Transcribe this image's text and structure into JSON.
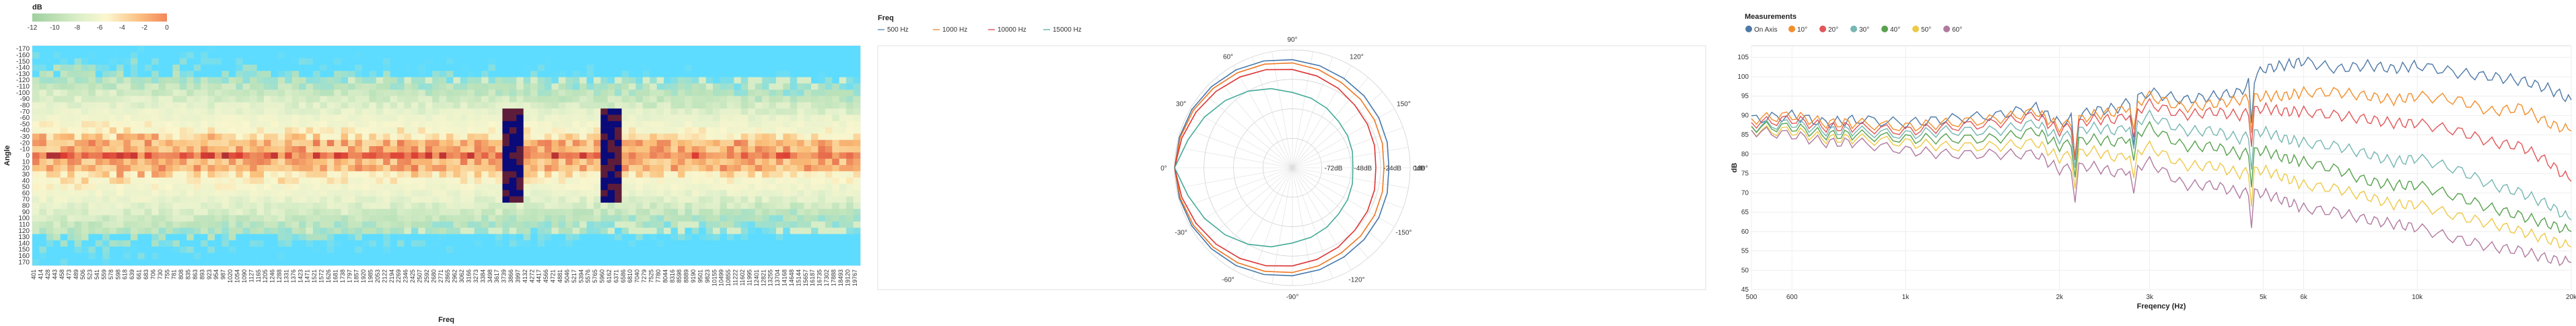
{
  "heatmap": {
    "legend_title": "dB",
    "legend_ticks": [
      "-12",
      "-10",
      "-8",
      "-6",
      "-4",
      "-2",
      "0"
    ],
    "xlabel": "Freq",
    "ylabel": "Angle",
    "y_ticks": [
      "-170",
      "-160",
      "-150",
      "-140",
      "-130",
      "-120",
      "-110",
      "-100",
      "-90",
      "-80",
      "-70",
      "-60",
      "-50",
      "-40",
      "-30",
      "-20",
      "-10",
      "0",
      "10",
      "20",
      "30",
      "40",
      "50",
      "60",
      "70",
      "80",
      "90",
      "100",
      "110",
      "120",
      "130",
      "140",
      "150",
      "160",
      "170"
    ],
    "x_ticks": [
      "401",
      "414",
      "428",
      "443",
      "458",
      "473",
      "489",
      "506",
      "523",
      "541",
      "559",
      "578",
      "598",
      "618",
      "639",
      "661",
      "683",
      "706",
      "730",
      "755",
      "781",
      "808",
      "835",
      "863",
      "893",
      "923",
      "954",
      "987",
      "1020",
      "1054",
      "1090",
      "1127",
      "1165",
      "1205",
      "1246",
      "1288",
      "1331",
      "1376",
      "1423",
      "1471",
      "1521",
      "1572",
      "1626",
      "1681",
      "1738",
      "1797",
      "1857",
      "1920",
      "1985",
      "2053",
      "2122",
      "2194",
      "2269",
      "2346",
      "2425",
      "2507",
      "2592",
      "2680",
      "2771",
      "2865",
      "2962",
      "3062",
      "3166",
      "3273",
      "3384",
      "3498",
      "3617",
      "3739",
      "3866",
      "3997",
      "4132",
      "4272",
      "4417",
      "4566",
      "4721",
      "4881",
      "5046",
      "5217",
      "5394",
      "5576",
      "5765",
      "5960",
      "6162",
      "6371",
      "6586",
      "6810",
      "7040",
      "7279",
      "7525",
      "7780",
      "8044",
      "8316",
      "8598",
      "8889",
      "9190",
      "9501",
      "9823",
      "10155",
      "10499",
      "10855",
      "11222",
      "11602",
      "11995",
      "12401",
      "12821",
      "13255",
      "13704",
      "14168",
      "14648",
      "15144",
      "15657",
      "16187",
      "16735",
      "17302",
      "17888",
      "18493",
      "19120",
      "19767"
    ]
  },
  "polar": {
    "legend_title": "Freq",
    "legend": [
      {
        "label": "500 Hz",
        "color": "#4477aa"
      },
      {
        "label": "1000 Hz",
        "color": "#ee7722"
      },
      {
        "label": "10000 Hz",
        "color": "#dd3333"
      },
      {
        "label": "15000 Hz",
        "color": "#44aa99"
      }
    ],
    "angle_labels": [
      {
        "text": "90°",
        "deg": 90
      },
      {
        "text": "120°",
        "deg": 60
      },
      {
        "text": "150°",
        "deg": 30
      },
      {
        "text": "180°",
        "deg": 0
      },
      {
        "text": "-150°",
        "deg": -30
      },
      {
        "text": "-120°",
        "deg": -60
      },
      {
        "text": "-90°",
        "deg": -90
      },
      {
        "text": "-60°",
        "deg": -120
      },
      {
        "text": "-30°",
        "deg": -150
      },
      {
        "text": "0°",
        "deg": 180
      },
      {
        "text": "30°",
        "deg": 150
      },
      {
        "text": "60°",
        "deg": 120
      }
    ],
    "ring_labels": [
      "-72dB",
      "-48dB",
      "-24dB",
      "0dB"
    ]
  },
  "spl": {
    "legend_title": "Measurements",
    "ylabel": "dB",
    "xlabel": "Freqency (Hz)",
    "y_ticks": [
      "45",
      "50",
      "55",
      "60",
      "65",
      "70",
      "75",
      "80",
      "85",
      "90",
      "95",
      "100",
      "105"
    ],
    "x_ticks": [
      "500",
      "600",
      "1k",
      "2k",
      "3k",
      "5k",
      "6k",
      "10k",
      "20k"
    ]
  },
  "chart_data": [
    {
      "type": "heatmap",
      "title": "",
      "xlabel": "Freq",
      "ylabel": "Angle",
      "x_range": [
        401,
        19767
      ],
      "y_range": [
        -170,
        170
      ],
      "color_scale": {
        "min": -12,
        "max": 0,
        "unit": "dB"
      }
    },
    {
      "type": "line",
      "subtype": "polar",
      "title": "",
      "radial_range_db": [
        -72,
        0
      ],
      "series": [
        {
          "name": "500 Hz",
          "color": "#4477aa",
          "values": [
            0,
            -0.5,
            -1,
            -2,
            -3,
            -4.5,
            -6,
            -7.5,
            -9,
            -10,
            -11,
            -12,
            -13
          ]
        },
        {
          "name": "1000 Hz",
          "color": "#ee7722",
          "values": [
            0,
            -1,
            -2,
            -3.5,
            -5,
            -6.5,
            -8,
            -10,
            -12,
            -13,
            -14,
            -15,
            -16
          ]
        },
        {
          "name": "10000 Hz",
          "color": "#dd3333",
          "values": [
            0,
            -2,
            -4,
            -6,
            -8,
            -10,
            -12,
            -14,
            -16,
            -18,
            -19,
            -20,
            -21
          ]
        },
        {
          "name": "15000 Hz",
          "color": "#44aa99",
          "values": [
            0,
            -6,
            -10,
            -14,
            -18,
            -22,
            -26,
            -28,
            -30,
            -32,
            -33,
            -34,
            -35
          ]
        }
      ],
      "angles_deg": [
        0,
        15,
        30,
        45,
        60,
        75,
        90,
        105,
        120,
        135,
        150,
        165,
        180
      ]
    },
    {
      "type": "line",
      "title": "",
      "xlabel": "Freqency (Hz)",
      "ylabel": "dB",
      "x_scale": "log",
      "xlim": [
        500,
        20000
      ],
      "ylim": [
        45,
        108
      ],
      "x": [
        500,
        600,
        700,
        800,
        1000,
        1200,
        1500,
        1800,
        2000,
        2300,
        2600,
        3000,
        3500,
        4000,
        4500,
        5000,
        5500,
        6000,
        7000,
        8000,
        9000,
        10000,
        12000,
        14000,
        16000,
        18000,
        20000
      ],
      "series": [
        {
          "name": "On Axis",
          "color": "#4e79a7",
          "values": [
            89,
            90,
            88,
            89,
            88,
            89,
            90,
            92,
            88,
            91,
            92,
            96,
            94,
            95,
            96,
            102,
            103,
            104,
            102,
            103,
            102,
            103,
            101,
            100,
            99,
            97,
            94
          ]
        },
        {
          "name": "10°",
          "color": "#f28e2b",
          "values": [
            89,
            90,
            88,
            88,
            87,
            88,
            89,
            91,
            87,
            90,
            91,
            95,
            92,
            93,
            94,
            95,
            95,
            96,
            96,
            95,
            94,
            95,
            94,
            91,
            92,
            88,
            86
          ]
        },
        {
          "name": "20°",
          "color": "#e15759",
          "values": [
            88,
            89,
            87,
            87,
            86,
            87,
            88,
            90,
            86,
            89,
            89,
            93,
            90,
            91,
            90,
            92,
            91,
            91,
            90,
            89,
            88,
            88,
            86,
            83,
            82,
            78,
            73
          ]
        },
        {
          "name": "30°",
          "color": "#76b7b2",
          "values": [
            87,
            88,
            86,
            86,
            85,
            86,
            86,
            88,
            84,
            87,
            86,
            90,
            86,
            86,
            84,
            86,
            84,
            83,
            82,
            80,
            78,
            79,
            76,
            72,
            70,
            67,
            63
          ]
        },
        {
          "name": "40°",
          "color": "#59a14f",
          "values": [
            87,
            87,
            85,
            85,
            84,
            84,
            84,
            86,
            82,
            84,
            83,
            87,
            82,
            82,
            80,
            81,
            79,
            78,
            76,
            73,
            72,
            72,
            69,
            66,
            64,
            62,
            60
          ]
        },
        {
          "name": "50°",
          "color": "#edc948",
          "values": [
            86,
            86,
            84,
            84,
            83,
            82,
            82,
            83,
            79,
            81,
            79,
            82,
            77,
            77,
            75,
            76,
            74,
            72,
            71,
            69,
            67,
            67,
            64,
            62,
            60,
            58,
            56
          ]
        },
        {
          "name": "60°",
          "color": "#b07aa1",
          "values": [
            86,
            85,
            83,
            83,
            81,
            80,
            80,
            80,
            76,
            77,
            75,
            78,
            72,
            72,
            70,
            70,
            68,
            66,
            65,
            63,
            62,
            61,
            58,
            56,
            55,
            53,
            52
          ]
        }
      ]
    }
  ]
}
